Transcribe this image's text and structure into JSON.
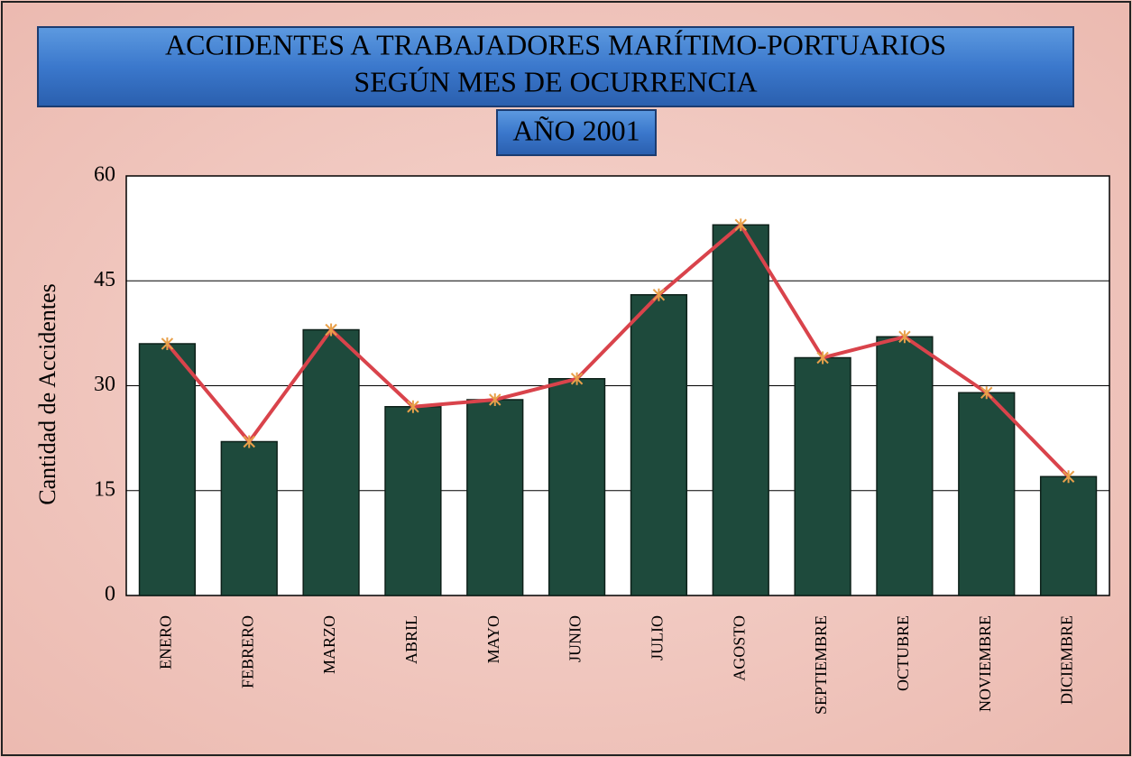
{
  "chart_data": {
    "type": "bar",
    "title": [
      "ACCIDENTES A TRABAJADORES MARÍTIMO-PORTUARIOS",
      "SEGÚN MES DE OCURRENCIA"
    ],
    "subtitle": "AÑO 2001",
    "y_label": "Cantidad de Accidentes",
    "categories": [
      "ENERO",
      "FEBRERO",
      "MARZO",
      "ABRIL",
      "MAYO",
      "JUNIO",
      "JULIO",
      "AGOSTO",
      "SEPTIEMBRE",
      "OCTUBRE",
      "NOVIEMBRE",
      "DICIEMBRE"
    ],
    "values": [
      36,
      22,
      38,
      27,
      28,
      31,
      43,
      53,
      34,
      37,
      29,
      17
    ],
    "color": "#1e4a3c",
    "line_color": "#d9434b",
    "ylim": [
      0,
      60
    ],
    "yticks": [
      0,
      15,
      30,
      45,
      60
    ],
    "grid": true
  }
}
